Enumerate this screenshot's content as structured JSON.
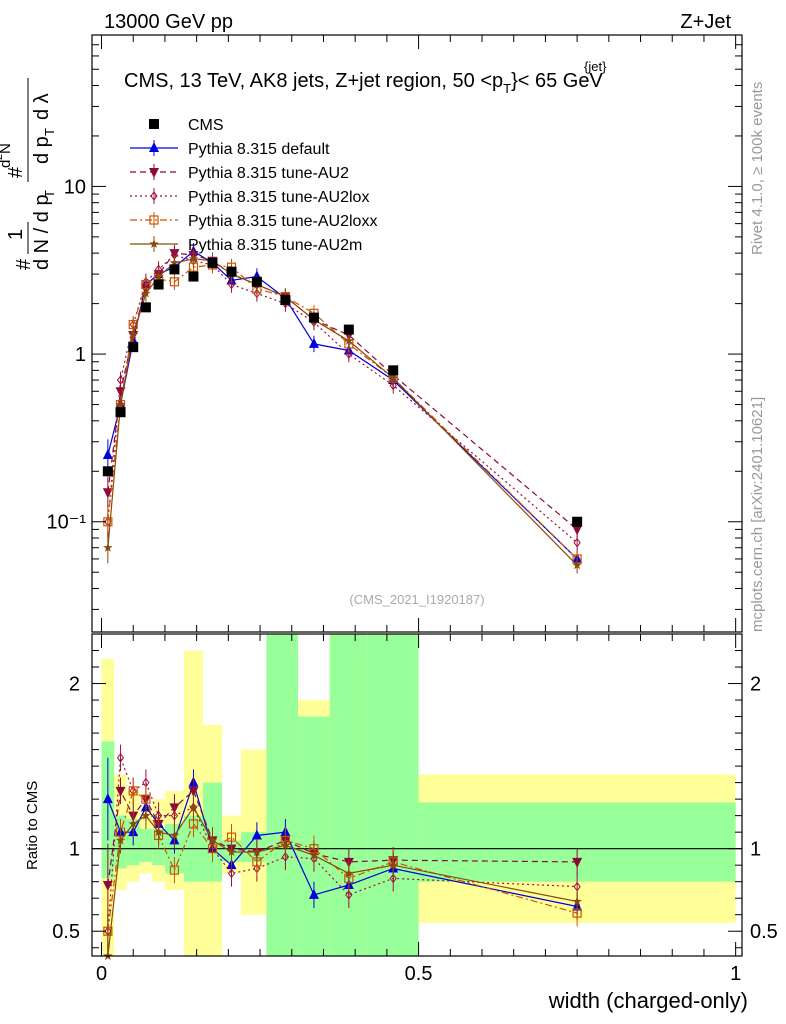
{
  "header": {
    "left": "13000 GeV pp",
    "right": "Z+Jet"
  },
  "side_labels": {
    "rivet": "Rivet 4.1.0, ≥ 100k events",
    "mcplots": "mcplots.cern.ch [arXiv:2401.10621]"
  },
  "watermark": "(CMS_2021_I1920187)",
  "y_label_main": "1/N dN/dpT d²N/dpT dλ",
  "chart_data": [
    {
      "type": "line",
      "name": "main",
      "title": "CMS, 13 TeV, AK8 jets, Z+jet region, 50 < pT(jet) < 65 GeV",
      "title_parts": {
        "prefix": "CMS, 13 TeV, AK8 jets, Z+jet region, 50 <p",
        "sub": "T",
        "sup": "{jet}",
        "suffix": "}< 65 GeV"
      },
      "xlabel": "width (charged-only)",
      "ylabel": "1/N dN/dpT d²N/dpT dλ",
      "yscale": "log",
      "xlim": [
        -0.015,
        1.01
      ],
      "ylim": [
        0.022,
        80
      ],
      "y_tick_labels": [
        "10⁻¹",
        "1",
        "10"
      ],
      "x": [
        0.01,
        0.03,
        0.05,
        0.07,
        0.09,
        0.115,
        0.145,
        0.175,
        0.205,
        0.245,
        0.29,
        0.335,
        0.39,
        0.46,
        0.75
      ],
      "series": [
        {
          "name": "CMS",
          "color": "#000000",
          "marker": "square",
          "dash": "none",
          "values": [
            0.2,
            0.45,
            1.1,
            1.9,
            2.6,
            3.2,
            2.9,
            3.5,
            3.1,
            2.7,
            2.1,
            1.65,
            1.4,
            0.8,
            0.1
          ]
        },
        {
          "name": "Pythia 8.315 default",
          "color": "#0000dd",
          "marker": "triangle-up",
          "dash": "none",
          "values": [
            0.25,
            0.5,
            1.2,
            2.6,
            3.0,
            3.3,
            4.1,
            3.5,
            2.75,
            2.9,
            2.15,
            1.15,
            1.05,
            0.7,
            0.06
          ]
        },
        {
          "name": "Pythia 8.315 tune-AU2",
          "color": "#8b0a3a",
          "marker": "triangle-down",
          "dash": "6,4",
          "values": [
            0.15,
            0.6,
            1.3,
            2.5,
            3.0,
            4.0,
            3.9,
            3.6,
            3.0,
            2.6,
            2.2,
            1.6,
            1.3,
            0.75,
            0.09
          ]
        },
        {
          "name": "Pythia 8.315 tune-AU2lox",
          "color": "#a0103a",
          "marker": "diamond",
          "dash": "2,3",
          "values": [
            0.1,
            0.7,
            1.5,
            2.7,
            3.2,
            3.9,
            3.6,
            3.4,
            2.6,
            2.3,
            2.0,
            1.55,
            1.0,
            0.65,
            0.075
          ]
        },
        {
          "name": "Pythia 8.315 tune-AU2loxx",
          "color": "#cc5500",
          "marker": "open-square",
          "dash": "7,3,2,3",
          "values": [
            0.1,
            0.5,
            1.5,
            2.6,
            2.8,
            2.7,
            3.3,
            3.4,
            3.3,
            2.45,
            2.2,
            1.75,
            1.15,
            0.72,
            0.06
          ]
        },
        {
          "name": "Pythia 8.315 tune-AU2m",
          "color": "#8b4a0a",
          "marker": "star",
          "dash": "none",
          "values": [
            0.07,
            0.5,
            1.3,
            2.3,
            2.9,
            3.5,
            3.7,
            3.6,
            3.0,
            2.6,
            2.2,
            1.6,
            1.2,
            0.72,
            0.055
          ]
        }
      ],
      "legend_position": "top-left"
    },
    {
      "type": "line",
      "name": "ratio",
      "ylabel": "Ratio to CMS",
      "xlabel": "width (charged-only)",
      "xlim": [
        -0.015,
        1.01
      ],
      "ylim": [
        0.35,
        2.3
      ],
      "x_tick_labels": [
        "0",
        "0.5",
        "1"
      ],
      "y_tick_labels": [
        "0.5",
        "1",
        "2"
      ],
      "reference_line": 1,
      "bins": [
        {
          "x0": 0.0,
          "x1": 0.02,
          "band1": [
            0.82,
            1.65
          ],
          "band2": [
            0.0,
            2.15
          ]
        },
        {
          "x0": 0.02,
          "x1": 0.04,
          "band1": [
            0.88,
            1.2
          ],
          "band2": [
            0.75,
            1.45
          ]
        },
        {
          "x0": 0.04,
          "x1": 0.06,
          "band1": [
            0.9,
            1.18
          ],
          "band2": [
            0.8,
            1.35
          ]
        },
        {
          "x0": 0.06,
          "x1": 0.08,
          "band1": [
            0.92,
            1.12
          ],
          "band2": [
            0.85,
            1.25
          ]
        },
        {
          "x0": 0.08,
          "x1": 0.1,
          "band1": [
            0.9,
            1.12
          ],
          "band2": [
            0.8,
            1.3
          ]
        },
        {
          "x0": 0.1,
          "x1": 0.13,
          "band1": [
            0.85,
            1.15
          ],
          "band2": [
            0.75,
            1.35
          ]
        },
        {
          "x0": 0.13,
          "x1": 0.16,
          "band1": [
            0.8,
            1.2
          ],
          "band2": [
            0.0,
            2.2
          ]
        },
        {
          "x0": 0.16,
          "x1": 0.19,
          "band1": [
            0.8,
            1.4
          ],
          "band2": [
            0.0,
            1.75
          ]
        },
        {
          "x0": 0.19,
          "x1": 0.22,
          "band1": [
            0.92,
            1.05
          ],
          "band2": [
            0.85,
            1.2
          ]
        },
        {
          "x0": 0.22,
          "x1": 0.26,
          "band1": [
            0.92,
            1.1
          ],
          "band2": [
            0.6,
            1.6
          ]
        },
        {
          "x0": 0.26,
          "x1": 0.31,
          "band1": [
            0.0,
            2.4
          ],
          "band2": [
            0.0,
            2.4
          ]
        },
        {
          "x0": 0.31,
          "x1": 0.36,
          "band1": [
            0.0,
            1.8
          ],
          "band2": [
            0.0,
            1.9
          ]
        },
        {
          "x0": 0.36,
          "x1": 0.42,
          "band1": [
            0.0,
            2.4
          ],
          "band2": [
            0.0,
            2.4
          ]
        },
        {
          "x0": 0.42,
          "x1": 0.5,
          "band1": [
            0.0,
            2.4
          ],
          "band2": [
            0.0,
            2.4
          ]
        },
        {
          "x0": 0.5,
          "x1": 1.0,
          "band1": [
            0.8,
            1.28
          ],
          "band2": [
            0.55,
            1.45
          ]
        }
      ],
      "series": [
        {
          "name": "Pythia 8.315 default",
          "values": [
            1.3,
            1.1,
            1.1,
            1.25,
            1.15,
            1.05,
            1.4,
            1.0,
            0.9,
            1.08,
            1.1,
            0.72,
            0.78,
            0.88,
            0.65
          ]
        },
        {
          "name": "Pythia 8.315 tune-AU2",
          "values": [
            0.78,
            1.35,
            1.2,
            1.3,
            1.15,
            1.25,
            1.35,
            1.05,
            1.0,
            0.98,
            1.05,
            0.97,
            0.92,
            0.93,
            0.92
          ]
        },
        {
          "name": "Pythia 8.315 tune-AU2lox",
          "values": [
            0.5,
            1.55,
            1.35,
            1.4,
            1.2,
            1.2,
            1.25,
            1.0,
            0.85,
            0.88,
            0.95,
            0.94,
            0.72,
            0.82,
            0.77
          ]
        },
        {
          "name": "Pythia 8.315 tune-AU2loxx",
          "values": [
            0.5,
            1.1,
            1.35,
            1.3,
            1.08,
            0.87,
            1.15,
            1.0,
            1.07,
            0.92,
            1.05,
            1.0,
            0.82,
            0.92,
            0.61
          ]
        },
        {
          "name": "Pythia 8.315 tune-AU2m",
          "values": [
            0.35,
            1.05,
            1.15,
            1.2,
            1.1,
            1.08,
            1.25,
            1.05,
            0.98,
            0.98,
            1.02,
            0.96,
            0.85,
            0.9,
            0.68
          ]
        }
      ]
    }
  ]
}
